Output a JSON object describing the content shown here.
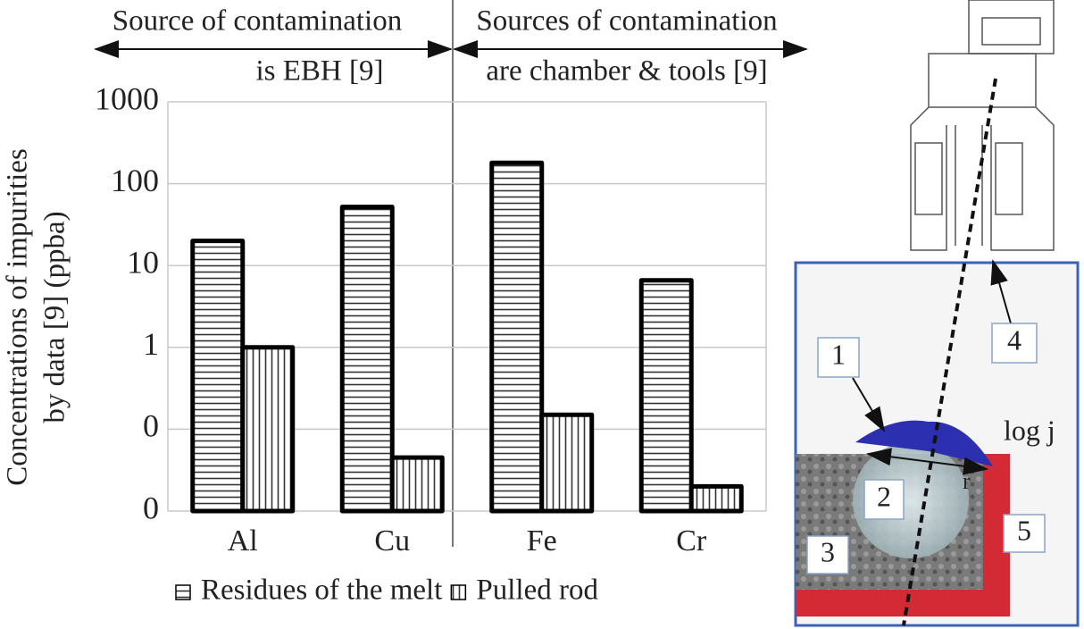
{
  "chart_data": {
    "type": "bar",
    "annotations": [
      "Source of contamination",
      "is EBH [9]",
      "Sources of contamination",
      "are chamber & tools [9]"
    ],
    "y_label": [
      "Concentrations of impurities",
      "by data [9] (ppba)"
    ],
    "categories": [
      "Al",
      "Cu",
      "Fe",
      "Cr"
    ],
    "series": [
      {
        "name": "Residues of the melt",
        "color": "#000000",
        "pattern": "horizontal",
        "values": [
          20,
          52,
          180,
          6.6
        ]
      },
      {
        "name": "Pulled rod",
        "color": "#000000",
        "pattern": "vertical",
        "values": [
          1,
          0.045,
          0.15,
          0.02
        ]
      }
    ],
    "log_scale": true,
    "ylim": [
      0.01,
      1000
    ],
    "yticks": [
      {
        "value": 0.01,
        "label": "0"
      },
      {
        "value": 0.1,
        "label": "0"
      },
      1,
      10,
      100,
      1000
    ],
    "grid": true
  },
  "diagram": {
    "labels": [
      "1",
      "2",
      "3",
      "4",
      "5"
    ],
    "log_j": "log j",
    "r": "r"
  }
}
